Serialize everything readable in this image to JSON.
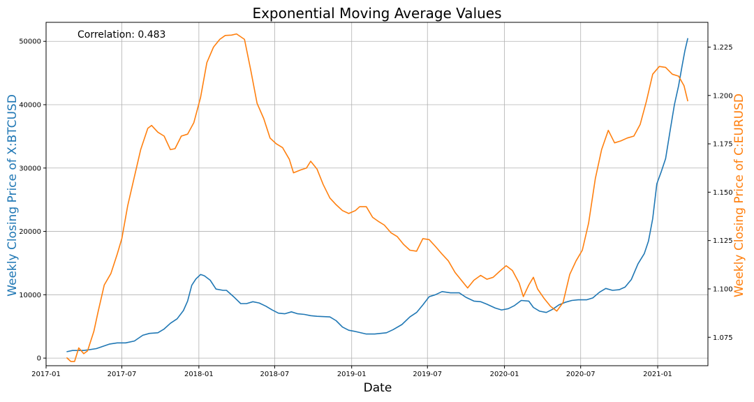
{
  "chart_data": {
    "type": "line",
    "title": "Exponential Moving Average Values",
    "xlabel": "Date",
    "ylabel_left": "Weekly Closing Price of X:BTCUSD",
    "ylabel_right": "Weekly Closing Price of C:EURUSD",
    "annotation": "Correlation: 0.483",
    "grid": true,
    "x_range": [
      "2017-01",
      "2021-05"
    ],
    "x_ticks": [
      "2017-01",
      "2017-07",
      "2018-01",
      "2018-07",
      "2019-01",
      "2019-07",
      "2020-01",
      "2020-07",
      "2021-01"
    ],
    "ylim_left": [
      -1200,
      53000
    ],
    "yticks_left": [
      0,
      10000,
      20000,
      30000,
      40000,
      50000
    ],
    "ylim_right": [
      1.0603,
      1.2378
    ],
    "yticks_right": [
      1.075,
      1.1,
      1.125,
      1.15,
      1.175,
      1.2,
      1.225
    ],
    "series": [
      {
        "name": "X:BTCUSD",
        "axis": "left",
        "color": "#1f77b4",
        "points": [
          [
            "2017-02-19",
            1000
          ],
          [
            "2017-03-05",
            1200
          ],
          [
            "2017-04-01",
            1200
          ],
          [
            "2017-05-01",
            1500
          ],
          [
            "2017-06-01",
            2200
          ],
          [
            "2017-06-20",
            2400
          ],
          [
            "2017-07-10",
            2400
          ],
          [
            "2017-07-31",
            2700
          ],
          [
            "2017-08-20",
            3600
          ],
          [
            "2017-09-05",
            3900
          ],
          [
            "2017-09-25",
            4000
          ],
          [
            "2017-10-10",
            4600
          ],
          [
            "2017-10-25",
            5500
          ],
          [
            "2017-11-10",
            6200
          ],
          [
            "2017-11-25",
            7500
          ],
          [
            "2017-12-05",
            9000
          ],
          [
            "2017-12-15",
            11500
          ],
          [
            "2017-12-25",
            12500
          ],
          [
            "2018-01-05",
            13200
          ],
          [
            "2018-01-14",
            13000
          ],
          [
            "2018-01-28",
            12300
          ],
          [
            "2018-02-11",
            10900
          ],
          [
            "2018-02-28",
            10700
          ],
          [
            "2018-03-08",
            10700
          ],
          [
            "2018-03-25",
            9700
          ],
          [
            "2018-04-11",
            8600
          ],
          [
            "2018-04-25",
            8600
          ],
          [
            "2018-05-10",
            8900
          ],
          [
            "2018-05-25",
            8700
          ],
          [
            "2018-06-10",
            8200
          ],
          [
            "2018-06-25",
            7600
          ],
          [
            "2018-07-10",
            7100
          ],
          [
            "2018-07-25",
            7000
          ],
          [
            "2018-08-10",
            7300
          ],
          [
            "2018-08-25",
            7000
          ],
          [
            "2018-09-10",
            6900
          ],
          [
            "2018-09-25",
            6700
          ],
          [
            "2018-10-10",
            6600
          ],
          [
            "2018-11-10",
            6500
          ],
          [
            "2018-11-25",
            5900
          ],
          [
            "2018-12-10",
            4900
          ],
          [
            "2018-12-25",
            4400
          ],
          [
            "2019-01-10",
            4200
          ],
          [
            "2019-02-05",
            3800
          ],
          [
            "2019-02-25",
            3800
          ],
          [
            "2019-03-25",
            4000
          ],
          [
            "2019-04-10",
            4500
          ],
          [
            "2019-05-01",
            5300
          ],
          [
            "2019-05-20",
            6500
          ],
          [
            "2019-06-05",
            7200
          ],
          [
            "2019-06-20",
            8400
          ],
          [
            "2019-07-05",
            9700
          ],
          [
            "2019-07-20",
            10000
          ],
          [
            "2019-08-05",
            10500
          ],
          [
            "2019-08-25",
            10300
          ],
          [
            "2019-09-15",
            10300
          ],
          [
            "2019-10-01",
            9600
          ],
          [
            "2019-10-20",
            9000
          ],
          [
            "2019-11-05",
            8900
          ],
          [
            "2019-11-20",
            8500
          ],
          [
            "2019-12-10",
            7900
          ],
          [
            "2019-12-25",
            7600
          ],
          [
            "2020-01-10",
            7800
          ],
          [
            "2020-01-25",
            8300
          ],
          [
            "2020-02-10",
            9100
          ],
          [
            "2020-02-28",
            9000
          ],
          [
            "2020-03-10",
            8000
          ],
          [
            "2020-03-25",
            7400
          ],
          [
            "2020-04-10",
            7200
          ],
          [
            "2020-04-25",
            7700
          ],
          [
            "2020-05-10",
            8400
          ],
          [
            "2020-05-25",
            8800
          ],
          [
            "2020-06-10",
            9100
          ],
          [
            "2020-06-25",
            9200
          ],
          [
            "2020-07-15",
            9200
          ],
          [
            "2020-07-30",
            9500
          ],
          [
            "2020-08-15",
            10400
          ],
          [
            "2020-08-30",
            11000
          ],
          [
            "2020-09-15",
            10700
          ],
          [
            "2020-10-01",
            10800
          ],
          [
            "2020-10-15",
            11200
          ],
          [
            "2020-10-30",
            12400
          ],
          [
            "2020-11-15",
            14900
          ],
          [
            "2020-11-30",
            16500
          ],
          [
            "2020-12-10",
            18500
          ],
          [
            "2020-12-20",
            22000
          ],
          [
            "2020-12-30",
            27500
          ],
          [
            "2021-01-10",
            29500
          ],
          [
            "2021-01-20",
            31500
          ],
          [
            "2021-01-31",
            36000
          ],
          [
            "2021-02-10",
            40000
          ],
          [
            "2021-02-20",
            43000
          ],
          [
            "2021-02-28",
            46000
          ],
          [
            "2021-03-07",
            48500
          ],
          [
            "2021-03-14",
            50500
          ]
        ]
      },
      {
        "name": "C:EURUSD",
        "axis": "right",
        "color": "#ff7f0e",
        "points": [
          [
            "2017-02-19",
            1.0645
          ],
          [
            "2017-03-01",
            1.0625
          ],
          [
            "2017-03-10",
            1.0625
          ],
          [
            "2017-03-20",
            1.0695
          ],
          [
            "2017-04-01",
            1.0665
          ],
          [
            "2017-04-10",
            1.068
          ],
          [
            "2017-04-25",
            1.078
          ],
          [
            "2017-05-05",
            1.088
          ],
          [
            "2017-05-20",
            1.102
          ],
          [
            "2017-06-05",
            1.108
          ],
          [
            "2017-06-20",
            1.118
          ],
          [
            "2017-07-01",
            1.126
          ],
          [
            "2017-07-15",
            1.143
          ],
          [
            "2017-07-31",
            1.158
          ],
          [
            "2017-08-15",
            1.172
          ],
          [
            "2017-09-01",
            1.183
          ],
          [
            "2017-09-10",
            1.1845
          ],
          [
            "2017-09-25",
            1.181
          ],
          [
            "2017-10-10",
            1.179
          ],
          [
            "2017-10-25",
            1.172
          ],
          [
            "2017-11-05",
            1.1725
          ],
          [
            "2017-11-20",
            1.179
          ],
          [
            "2017-12-05",
            1.18
          ],
          [
            "2017-12-20",
            1.186
          ],
          [
            "2018-01-05",
            1.199
          ],
          [
            "2018-01-20",
            1.217
          ],
          [
            "2018-02-05",
            1.225
          ],
          [
            "2018-02-20",
            1.229
          ],
          [
            "2018-03-05",
            1.231
          ],
          [
            "2018-03-20",
            1.2312
          ],
          [
            "2018-04-01",
            1.2318
          ],
          [
            "2018-04-20",
            1.229
          ],
          [
            "2018-05-05",
            1.213
          ],
          [
            "2018-05-20",
            1.196
          ],
          [
            "2018-06-05",
            1.188
          ],
          [
            "2018-06-20",
            1.178
          ],
          [
            "2018-07-05",
            1.175
          ],
          [
            "2018-07-20",
            1.173
          ],
          [
            "2018-08-05",
            1.167
          ],
          [
            "2018-08-15",
            1.16
          ],
          [
            "2018-09-01",
            1.1615
          ],
          [
            "2018-09-15",
            1.1625
          ],
          [
            "2018-09-25",
            1.166
          ],
          [
            "2018-10-10",
            1.162
          ],
          [
            "2018-10-25",
            1.154
          ],
          [
            "2018-11-10",
            1.147
          ],
          [
            "2018-11-25",
            1.1435
          ],
          [
            "2018-12-10",
            1.1405
          ],
          [
            "2018-12-25",
            1.139
          ],
          [
            "2019-01-10",
            1.1405
          ],
          [
            "2019-01-20",
            1.1425
          ],
          [
            "2019-02-05",
            1.1425
          ],
          [
            "2019-02-20",
            1.137
          ],
          [
            "2019-03-05",
            1.135
          ],
          [
            "2019-03-20",
            1.133
          ],
          [
            "2019-04-05",
            1.129
          ],
          [
            "2019-04-20",
            1.127
          ],
          [
            "2019-05-05",
            1.123
          ],
          [
            "2019-05-20",
            1.12
          ],
          [
            "2019-06-05",
            1.1195
          ],
          [
            "2019-06-20",
            1.126
          ],
          [
            "2019-07-05",
            1.1255
          ],
          [
            "2019-07-20",
            1.122
          ],
          [
            "2019-08-05",
            1.118
          ],
          [
            "2019-08-20",
            1.1145
          ],
          [
            "2019-09-05",
            1.1085
          ],
          [
            "2019-09-20",
            1.1045
          ],
          [
            "2019-10-05",
            1.1005
          ],
          [
            "2019-10-20",
            1.1045
          ],
          [
            "2019-11-05",
            1.107
          ],
          [
            "2019-11-20",
            1.105
          ],
          [
            "2019-12-05",
            1.106
          ],
          [
            "2019-12-20",
            1.109
          ],
          [
            "2020-01-05",
            1.112
          ],
          [
            "2020-01-20",
            1.1095
          ],
          [
            "2020-02-05",
            1.103
          ],
          [
            "2020-02-15",
            1.096
          ],
          [
            "2020-02-28",
            1.102
          ],
          [
            "2020-03-10",
            1.106
          ],
          [
            "2020-03-20",
            1.1
          ],
          [
            "2020-04-05",
            1.095
          ],
          [
            "2020-04-20",
            1.091
          ],
          [
            "2020-05-05",
            1.0885
          ],
          [
            "2020-05-20",
            1.093
          ],
          [
            "2020-06-05",
            1.1075
          ],
          [
            "2020-06-20",
            1.1145
          ],
          [
            "2020-07-05",
            1.12
          ],
          [
            "2020-07-20",
            1.134
          ],
          [
            "2020-08-05",
            1.157
          ],
          [
            "2020-08-20",
            1.172
          ],
          [
            "2020-09-05",
            1.182
          ],
          [
            "2020-09-20",
            1.1755
          ],
          [
            "2020-10-05",
            1.1765
          ],
          [
            "2020-10-20",
            1.178
          ],
          [
            "2020-11-05",
            1.179
          ],
          [
            "2020-11-20",
            1.185
          ],
          [
            "2020-12-05",
            1.197
          ],
          [
            "2020-12-20",
            1.211
          ],
          [
            "2021-01-05",
            1.215
          ],
          [
            "2021-01-20",
            1.2145
          ],
          [
            "2021-02-05",
            1.211
          ],
          [
            "2021-02-20",
            1.21
          ],
          [
            "2021-03-05",
            1.205
          ],
          [
            "2021-03-14",
            1.197
          ]
        ]
      }
    ]
  }
}
